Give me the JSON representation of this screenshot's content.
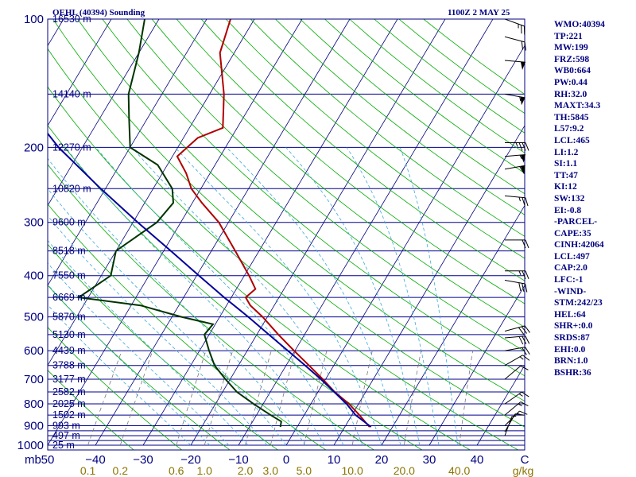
{
  "chart_data": {
    "type": "line",
    "title_left": "OEHL (40394) Sounding",
    "title_right": "1100Z  2 MAY 25",
    "pressure_ticks": [
      100,
      200,
      300,
      400,
      500,
      600,
      700,
      800,
      900,
      1000
    ],
    "pressure_levels": [
      100,
      150,
      200,
      250,
      300,
      350,
      400,
      450,
      500,
      550,
      600,
      650,
      700,
      750,
      800,
      850,
      900,
      925,
      950,
      975,
      1000
    ],
    "pressure_unit": "mb",
    "temperature_ticks": [
      -50,
      -40,
      -30,
      -20,
      -10,
      0,
      10,
      20,
      30,
      40,
      50
    ],
    "temperature_tick_labels": [
      "50",
      "−40",
      "−30",
      "−20",
      "−10",
      "0",
      "10",
      "20",
      "30",
      "40",
      "C"
    ],
    "temperature_range_c": [
      -50,
      50
    ],
    "mixing_ratio_labels": [
      "0.1",
      "0.2",
      "0.6",
      "1.0",
      "2.0",
      "3.0",
      "5.0",
      "10.0",
      "20.0",
      "40.0"
    ],
    "mixing_ratio_values": [
      0.1,
      0.2,
      0.6,
      1.0,
      2.0,
      3.0,
      5.0,
      10.0,
      20.0,
      40.0
    ],
    "mixing_ratio_unit": "g/kg",
    "height_labels": [
      {
        "p": 100,
        "label": "16530 m"
      },
      {
        "p": 150,
        "label": "14140 m"
      },
      {
        "p": 200,
        "label": "12270 m"
      },
      {
        "p": 250,
        "label": "10820 m"
      },
      {
        "p": 300,
        "label": "9600 m"
      },
      {
        "p": 350,
        "label": "8518 m"
      },
      {
        "p": 400,
        "label": "7550 m"
      },
      {
        "p": 450,
        "label": "6669 m"
      },
      {
        "p": 500,
        "label": "5870 m"
      },
      {
        "p": 550,
        "label": "5130 m"
      },
      {
        "p": 600,
        "label": "4439 m"
      },
      {
        "p": 650,
        "label": "3788 m"
      },
      {
        "p": 700,
        "label": "3177 m"
      },
      {
        "p": 750,
        "label": "2582 m"
      },
      {
        "p": 800,
        "label": "2025 m"
      },
      {
        "p": 850,
        "label": "1502 m"
      },
      {
        "p": 900,
        "label": "993 m"
      },
      {
        "p": 950,
        "label": "497 m"
      },
      {
        "p": 1000,
        "label": "25 m"
      }
    ],
    "series": [
      {
        "name": "Temperature",
        "color": "#b00000",
        "points": [
          [
            906,
            15.2
          ],
          [
            900,
            14.8
          ],
          [
            850,
            11.6
          ],
          [
            800,
            8.0
          ],
          [
            750,
            3.5
          ],
          [
            700,
            -0.6
          ],
          [
            650,
            -5.2
          ],
          [
            600,
            -10.2
          ],
          [
            550,
            -15.5
          ],
          [
            500,
            -21.0
          ],
          [
            470,
            -25.0
          ],
          [
            450,
            -27.0
          ],
          [
            430,
            -26.0
          ],
          [
            400,
            -29.0
          ],
          [
            350,
            -35.0
          ],
          [
            300,
            -42.0
          ],
          [
            270,
            -48.0
          ],
          [
            250,
            -52.0
          ],
          [
            230,
            -55.0
          ],
          [
            210,
            -59.0
          ],
          [
            190,
            -57.0
          ],
          [
            180,
            -53.0
          ],
          [
            150,
            -57.0
          ],
          [
            120,
            -63.0
          ],
          [
            100,
            -65.0
          ]
        ]
      },
      {
        "name": "Dewpoint",
        "color": "#003300",
        "points": [
          [
            906,
            -3.5
          ],
          [
            880,
            -4.0
          ],
          [
            850,
            -7.0
          ],
          [
            800,
            -12.0
          ],
          [
            750,
            -17.0
          ],
          [
            700,
            -21.0
          ],
          [
            650,
            -25.0
          ],
          [
            600,
            -28.0
          ],
          [
            550,
            -31.0
          ],
          [
            520,
            -30.5
          ],
          [
            500,
            -38.0
          ],
          [
            470,
            -48.0
          ],
          [
            450,
            -62.0
          ],
          [
            400,
            -58.0
          ],
          [
            350,
            -60.0
          ],
          [
            300,
            -55.0
          ],
          [
            270,
            -54.0
          ],
          [
            250,
            -56.0
          ],
          [
            220,
            -62.0
          ],
          [
            200,
            -70.0
          ],
          [
            170,
            -74.0
          ],
          [
            150,
            -77.0
          ],
          [
            120,
            -80.0
          ],
          [
            100,
            -83.0
          ]
        ]
      },
      {
        "name": "Parcel",
        "color": "#00009c",
        "points": [
          [
            906,
            15.5
          ],
          [
            850,
            10.8
          ],
          [
            800,
            7.5
          ],
          [
            750,
            3.4
          ],
          [
            700,
            -1.0
          ],
          [
            650,
            -6.0
          ],
          [
            600,
            -11.5
          ],
          [
            550,
            -17.5
          ],
          [
            500,
            -24.0
          ],
          [
            450,
            -31.5
          ],
          [
            400,
            -39.5
          ],
          [
            350,
            -48.5
          ],
          [
            300,
            -59.0
          ],
          [
            250,
            -71.0
          ],
          [
            200,
            -85.0
          ],
          [
            160,
            -97.0
          ],
          [
            135,
            -105.0
          ]
        ]
      }
    ],
    "wind_barbs": [
      {
        "p": 100,
        "dir": 290,
        "kt": 25
      },
      {
        "p": 110,
        "dir": 285,
        "kt": 20
      },
      {
        "p": 125,
        "dir": 275,
        "kt": 50
      },
      {
        "p": 150,
        "dir": 280,
        "kt": 55
      },
      {
        "p": 195,
        "dir": 270,
        "kt": 35
      },
      {
        "p": 210,
        "dir": 265,
        "kt": 55
      },
      {
        "p": 225,
        "dir": 260,
        "kt": 60
      },
      {
        "p": 260,
        "dir": 275,
        "kt": 25
      },
      {
        "p": 330,
        "dir": 270,
        "kt": 20
      },
      {
        "p": 390,
        "dir": 270,
        "kt": 25
      },
      {
        "p": 410,
        "dir": 280,
        "kt": 30
      },
      {
        "p": 540,
        "dir": 255,
        "kt": 30
      },
      {
        "p": 560,
        "dir": 265,
        "kt": 30
      },
      {
        "p": 600,
        "dir": 260,
        "kt": 20
      },
      {
        "p": 650,
        "dir": 240,
        "kt": 15
      },
      {
        "p": 700,
        "dir": 230,
        "kt": 10
      },
      {
        "p": 800,
        "dir": 235,
        "kt": 15
      },
      {
        "p": 850,
        "dir": 230,
        "kt": 15
      },
      {
        "p": 900,
        "dir": 225,
        "kt": 15
      },
      {
        "p": 930,
        "dir": 210,
        "kt": 10
      },
      {
        "p": 950,
        "dir": 200,
        "kt": 5
      }
    ],
    "hodograph_labels": [
      "C"
    ],
    "grid": true
  },
  "indices": [
    "WMO:40394",
    "TP:221",
    "MW:199",
    "FRZ:598",
    "WB0:664",
    "PW:0.44",
    "RH:32.0",
    "MAXT:34.3",
    "TH:5845",
    "L57:9.2",
    "LCL:465",
    "LI:1.2",
    "SI:1.1",
    "TT:47",
    "KI:12",
    "SW:132",
    "EI:-0.8",
    "-PARCEL-",
    "CAPE:35",
    "CINH:42064",
    "LCL:497",
    "CAP:2.0",
    "LFC:-1",
    "-WIND-",
    "STM:242/23",
    "HEL:64",
    "SHR+:0.0",
    "SRDS:87",
    "EHI:0.0",
    "BRN:1.0",
    "BSHR:36"
  ],
  "colors": {
    "frame": "#000080",
    "isobar": "#00008b",
    "isotherm": "#00007a",
    "dry_adiabat": "#00aa00",
    "moist_adiabat": "#3fa9d9",
    "mixing_ratio": "#777777",
    "temperature": "#b00000",
    "dewpoint": "#003300",
    "parcel": "#00009c",
    "text": "#000080",
    "mixing_label": "#8b7500"
  }
}
